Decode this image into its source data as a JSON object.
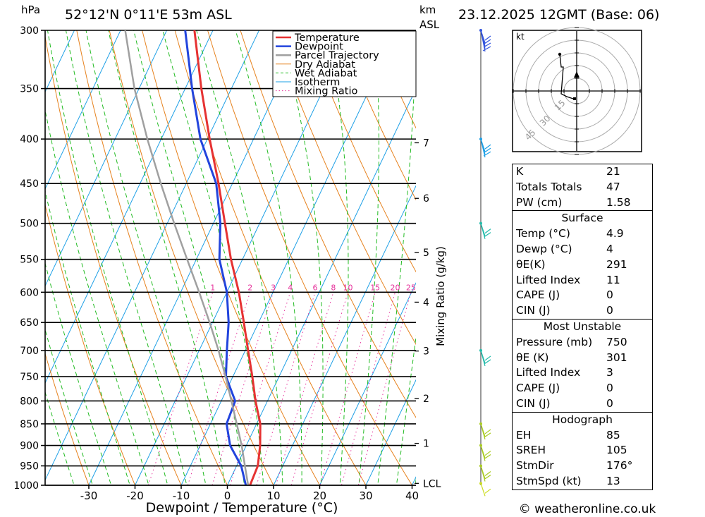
{
  "header": {
    "location": "52°12'N  0°11'E  53m  ASL",
    "datetime": "23.12.2025  12GMT  (Base: 06)",
    "hpa_label": "hPa",
    "km_label": "km",
    "asl_label": "ASL"
  },
  "footer": {
    "copyright": "© weatheronline.co.uk"
  },
  "colors": {
    "temperature": "#e63232",
    "dewpoint": "#2244dd",
    "parcel": "#a0a0a0",
    "dry_adiabat": "#e6821e",
    "wet_adiabat": "#22bb22",
    "isotherm": "#1ea0e6",
    "mixing_ratio": "#e6329b",
    "wind": "#22bbaa"
  },
  "chart_data": {
    "type": "line",
    "xlabel": "Dewpoint / Temperature (°C)",
    "ylabel": "Mixing Ratio (g/kg)",
    "ylabel_left": "hPa",
    "pressure_levels": [
      300,
      350,
      400,
      450,
      500,
      550,
      600,
      650,
      700,
      750,
      800,
      850,
      900,
      950,
      1000
    ],
    "x_ticks": [
      -30,
      -20,
      -10,
      0,
      10,
      20,
      30,
      40
    ],
    "xlim": [
      -40,
      40
    ],
    "ylim": [
      1000,
      300
    ],
    "km_ticks": [
      {
        "label": "7",
        "p": 404
      },
      {
        "label": "6",
        "p": 468
      },
      {
        "label": "5",
        "p": 540
      },
      {
        "label": "4",
        "p": 616
      },
      {
        "label": "3",
        "p": 701
      },
      {
        "label": "2",
        "p": 795
      },
      {
        "label": "1",
        "p": 895
      },
      {
        "label": "LCL",
        "p": 995
      }
    ],
    "mixing_ratio_labels": [
      "1",
      "2",
      "3",
      "4",
      "6",
      "8",
      "10",
      "15",
      "20",
      "25"
    ],
    "legend": {
      "placement": "top-right",
      "entries": [
        "Temperature",
        "Dewpoint",
        "Parcel Trajectory",
        "Dry Adiabat",
        "Wet Adiabat",
        "Isotherm",
        "Mixing Ratio"
      ]
    },
    "series": [
      {
        "name": "Temperature",
        "points": [
          {
            "p": 1000,
            "t": 4.9
          },
          {
            "p": 950,
            "t": 4.6
          },
          {
            "p": 900,
            "t": 3.0
          },
          {
            "p": 850,
            "t": 0.8
          },
          {
            "p": 800,
            "t": -2.6
          },
          {
            "p": 750,
            "t": -5.8
          },
          {
            "p": 700,
            "t": -9.4
          },
          {
            "p": 650,
            "t": -13.2
          },
          {
            "p": 600,
            "t": -17.4
          },
          {
            "p": 550,
            "t": -22.5
          },
          {
            "p": 500,
            "t": -27.5
          },
          {
            "p": 450,
            "t": -33.0
          },
          {
            "p": 400,
            "t": -39.5
          },
          {
            "p": 350,
            "t": -46.5
          },
          {
            "p": 300,
            "t": -54.0
          }
        ]
      },
      {
        "name": "Dewpoint",
        "points": [
          {
            "p": 1000,
            "t": 4.0
          },
          {
            "p": 950,
            "t": 1.0
          },
          {
            "p": 900,
            "t": -3.5
          },
          {
            "p": 850,
            "t": -6.5
          },
          {
            "p": 800,
            "t": -7.0
          },
          {
            "p": 750,
            "t": -11.5
          },
          {
            "p": 700,
            "t": -14.0
          },
          {
            "p": 650,
            "t": -16.5
          },
          {
            "p": 600,
            "t": -20.0
          },
          {
            "p": 550,
            "t": -25.0
          },
          {
            "p": 500,
            "t": -28.5
          },
          {
            "p": 450,
            "t": -33.5
          },
          {
            "p": 400,
            "t": -41.5
          },
          {
            "p": 350,
            "t": -48.5
          },
          {
            "p": 300,
            "t": -56.0
          }
        ]
      },
      {
        "name": "Parcel Trajectory",
        "points": [
          {
            "p": 1000,
            "t": 4.5
          },
          {
            "p": 950,
            "t": 1.8
          },
          {
            "p": 900,
            "t": -1.0
          },
          {
            "p": 850,
            "t": -4.3
          },
          {
            "p": 800,
            "t": -7.8
          },
          {
            "p": 750,
            "t": -11.6
          },
          {
            "p": 700,
            "t": -15.8
          },
          {
            "p": 650,
            "t": -20.6
          },
          {
            "p": 600,
            "t": -26.0
          },
          {
            "p": 550,
            "t": -32.0
          },
          {
            "p": 500,
            "t": -38.5
          },
          {
            "p": 450,
            "t": -45.5
          },
          {
            "p": 400,
            "t": -53.0
          },
          {
            "p": 350,
            "t": -61.0
          },
          {
            "p": 300,
            "t": -69.0
          }
        ]
      }
    ]
  },
  "hodograph": {
    "unit_label": "kt",
    "ring_labels": [
      "15",
      "30",
      "45"
    ]
  },
  "indices": {
    "basic": [
      {
        "label": "K",
        "value": "21"
      },
      {
        "label": "Totals Totals",
        "value": "47"
      },
      {
        "label": "PW (cm)",
        "value": "1.58"
      }
    ],
    "surface": {
      "title": "Surface",
      "rows": [
        {
          "label": "Temp (°C)",
          "value": "4.9"
        },
        {
          "label": "Dewp (°C)",
          "value": "4"
        },
        {
          "label": "θE(K)",
          "value": "291"
        },
        {
          "label": "Lifted Index",
          "value": "11"
        },
        {
          "label": "CAPE (J)",
          "value": "0"
        },
        {
          "label": "CIN (J)",
          "value": "0"
        }
      ]
    },
    "most_unstable": {
      "title": "Most Unstable",
      "rows": [
        {
          "label": "Pressure (mb)",
          "value": "750"
        },
        {
          "label": "θE (K)",
          "value": "301"
        },
        {
          "label": "Lifted Index",
          "value": "3"
        },
        {
          "label": "CAPE (J)",
          "value": "0"
        },
        {
          "label": "CIN (J)",
          "value": "0"
        }
      ]
    },
    "hodograph": {
      "title": "Hodograph",
      "rows": [
        {
          "label": "EH",
          "value": "85"
        },
        {
          "label": "SREH",
          "value": "105"
        },
        {
          "label": "StmDir",
          "value": "176°"
        },
        {
          "label": "StmSpd (kt)",
          "value": "13"
        }
      ]
    }
  }
}
